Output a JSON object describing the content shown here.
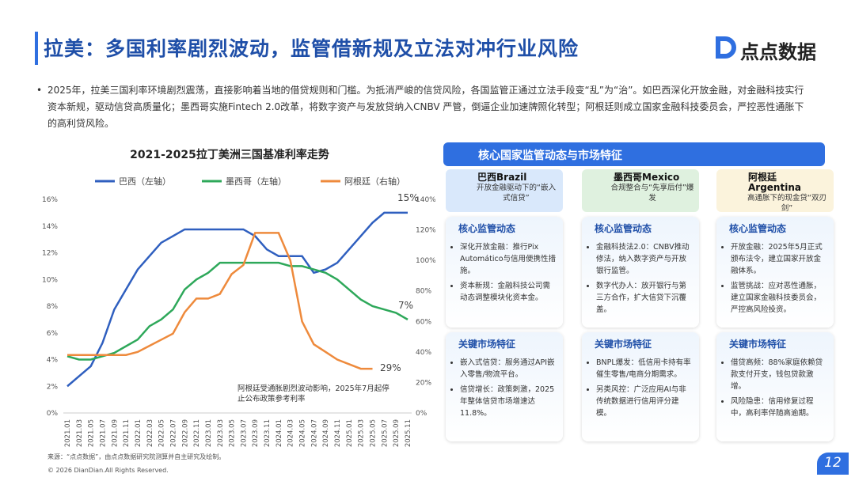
{
  "header": {
    "title": "拉美：多国利率剧烈波动，监管借新规及立法对冲行业风险",
    "logo": "点点数据"
  },
  "intro": "2025年，拉美三国利率环境剧烈震荡，直接影响着当地的借贷规则和门槛。为抵消严峻的信贷风险，各国监管正通过立法手段变“乱”为“治”。如巴西深化开放金融，对金融科技实行资本新规，驱动信贷高质量化；墨西哥实施Fintech 2.0改革，将数字资产与发放贷纳入CNBV 严管，倒逼企业加速牌照化转型；阿根廷则成立国家金融科技委员会，严控恶性通胀下的高利贷风险。",
  "chart_data": {
    "type": "line",
    "title": "2021-2025拉丁美洲三国基准利率走势",
    "categories": [
      "2021.01",
      "2021.03",
      "2021.05",
      "2021.07",
      "2021.09",
      "2021.11",
      "2022.01",
      "2022.03",
      "2022.05",
      "2022.07",
      "2022.09",
      "2022.11",
      "2023.01",
      "2023.03",
      "2023.05",
      "2023.07",
      "2023.09",
      "2023.11",
      "2024.01",
      "2024.03",
      "2024.05",
      "2024.07",
      "2024.09",
      "2024.11",
      "2025.01",
      "2025.03",
      "2025.05",
      "2025.07",
      "2025.09",
      "2025.11"
    ],
    "series": [
      {
        "name": "巴西（左轴）",
        "color": "#2f5fbf",
        "values": [
          2,
          2.75,
          3.5,
          5.25,
          7.75,
          9.25,
          10.75,
          11.75,
          12.75,
          13.25,
          13.75,
          13.75,
          13.75,
          13.75,
          13.75,
          13.75,
          13.25,
          12.25,
          11.75,
          11.75,
          11.75,
          10.5,
          10.75,
          11.25,
          12.25,
          13.25,
          14.25,
          15,
          15,
          15
        ]
      },
      {
        "name": "墨西哥（左轴）",
        "color": "#2ea85a",
        "values": [
          4.25,
          4,
          4,
          4.25,
          4.5,
          5,
          5.5,
          6.5,
          7,
          7.75,
          9.25,
          10,
          10.5,
          11.25,
          11.25,
          11.25,
          11.25,
          11.25,
          11.25,
          11,
          11,
          10.75,
          10.5,
          10,
          9.25,
          8.5,
          8,
          7.75,
          7.5,
          7
        ]
      },
      {
        "name": "阿根廷（右轴）",
        "color": "#ee8a3c",
        "axis": "y2",
        "values": [
          38,
          38,
          38,
          38,
          38,
          38,
          40,
          44,
          48,
          52,
          66,
          75,
          75,
          78,
          91,
          97,
          118,
          118,
          118,
          100,
          60,
          45,
          40,
          35,
          32,
          29,
          29,
          null,
          null,
          null
        ]
      }
    ],
    "ylim": [
      0,
      16
    ],
    "yticks": [
      {
        "value": 0,
        "label": "0%"
      },
      {
        "value": 2,
        "label": "2%"
      },
      {
        "value": 4,
        "label": "4%"
      },
      {
        "value": 6,
        "label": "6%"
      },
      {
        "value": 8,
        "label": "8%"
      },
      {
        "value": 10,
        "label": "10%"
      },
      {
        "value": 12,
        "label": "12%"
      },
      {
        "value": 14,
        "label": "14%"
      },
      {
        "value": 16,
        "label": "16%"
      }
    ],
    "y2lim": [
      0,
      140
    ],
    "y2ticks": [
      {
        "value": 0,
        "label": "0%"
      },
      {
        "value": 20,
        "label": "20%"
      },
      {
        "value": 40,
        "label": "40%"
      },
      {
        "value": 60,
        "label": "60%"
      },
      {
        "value": 80,
        "label": "80%"
      },
      {
        "value": 100,
        "label": "100%"
      },
      {
        "value": 120,
        "label": "120%"
      },
      {
        "value": 140,
        "label": "140%"
      }
    ],
    "annotations": [
      "15%",
      "7%",
      "29%"
    ],
    "note": [
      "阿根廷受通胀剧烈波动影响，2025年7月起停",
      "止公布政策参考利率"
    ],
    "legend": "top"
  },
  "panel": {
    "title": "核心国家监管动态与市场特征",
    "section1": "核心监管动态",
    "section2": "关键市场特征",
    "columns": [
      {
        "name": "巴西Brazil",
        "subtitle": "开放金融驱动下的“嵌入式信贷”",
        "dynamics": [
          "深化开放金融：推行Pix Automático与信用便携性措施。",
          "资本新规：金融科技公司需动态调整模块化资本金。"
        ],
        "features": [
          "嵌入式信贷：服务通过API嵌入零售/物流平台。",
          "信贷增长：政策刺激，2025年整体信贷市场增速达11.8%。"
        ]
      },
      {
        "name": "墨西哥Mexico",
        "subtitle": "合规整合与“先享后付”爆发",
        "dynamics": [
          "金融科技法2.0：CNBV推动修法，纳入数字资产与开放银行监管。",
          "数字代办人：放开银行与第三方合作，扩大信贷下沉覆盖。"
        ],
        "features": [
          "BNPL爆发：低信用卡持有率催生零售/电商分期需求。",
          "另类风控：广泛应用AI与非传统数据进行信用评分建模。"
        ]
      },
      {
        "name": "阿根廷Argentina",
        "subtitle": "高通胀下的现金贷“双刃剑”",
        "dynamics": [
          "开放金融：2025年5月正式颁布法令，建立国家开放金融体系。",
          "监管挑战：应对恶性通胀，建立国家金融科技委员会，严控高风险投资。"
        ],
        "features": [
          "借贷高频：88%家庭依赖贷款支付开支，钱包贷款激增。",
          "风险隐患：信用修复过程中，高利率伴随高逾期。"
        ]
      }
    ]
  },
  "footer": {
    "source": "来源：“点点数据”，由点点数据研究院测算并自主研究及绘制。",
    "copyright": "© 2026 DianDian.All Rights Reserved.",
    "page": "12"
  }
}
